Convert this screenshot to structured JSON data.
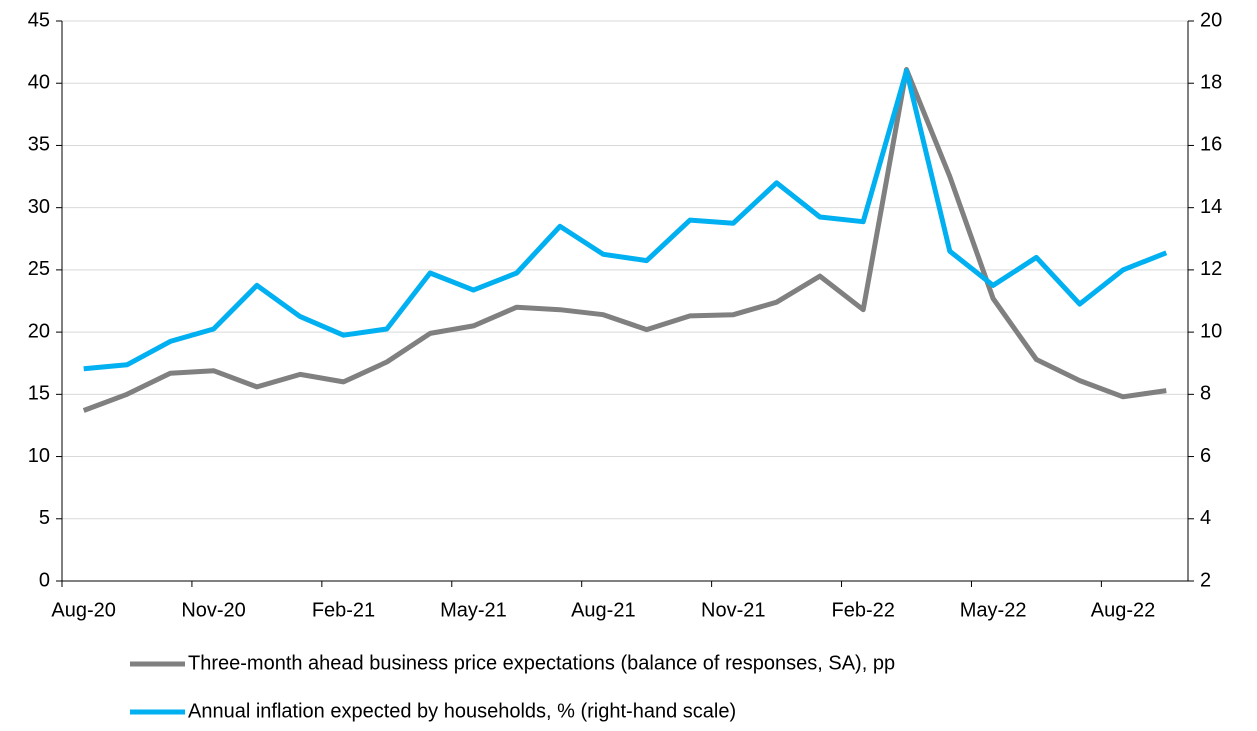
{
  "chart_data": {
    "type": "line",
    "categories": [
      "Aug-20",
      null,
      null,
      "Nov-20",
      null,
      null,
      "Feb-21",
      null,
      null,
      "May-21",
      null,
      null,
      "Aug-21",
      null,
      null,
      "Nov-21",
      null,
      null,
      "Feb-22",
      null,
      null,
      "May-22",
      null,
      null,
      "Aug-22",
      null
    ],
    "series": [
      {
        "name": "Three-month ahead business price expectations (balance of responses, SA), pp",
        "color": "#808080",
        "values": [
          13.7,
          15.0,
          16.7,
          16.9,
          15.6,
          16.6,
          16.0,
          17.6,
          19.9,
          20.5,
          22.0,
          21.8,
          21.4,
          20.2,
          21.3,
          21.4,
          22.4,
          24.5,
          21.8,
          41.1,
          32.5,
          22.7,
          17.8,
          16.1,
          14.8,
          15.3
        ]
      },
      {
        "name": "Annual inflation expected by households, % (right-hand scale)",
        "color": "#00b0f0",
        "axis": "y2",
        "values": [
          8.82,
          8.95,
          9.7,
          10.1,
          11.5,
          10.5,
          9.9,
          10.1,
          11.9,
          11.35,
          11.9,
          13.4,
          12.5,
          12.3,
          13.6,
          13.5,
          14.8,
          13.7,
          13.55,
          18.4,
          12.6,
          11.5,
          12.4,
          10.9,
          12.0,
          12.55
        ]
      }
    ],
    "ylim": [
      0,
      45
    ],
    "yticks": [
      0,
      5,
      10,
      15,
      20,
      25,
      30,
      35,
      40,
      45
    ],
    "y2lim": [
      2,
      20
    ],
    "y2ticks": [
      2,
      4,
      6,
      8,
      10,
      12,
      14,
      16,
      18,
      20
    ],
    "grid": true
  }
}
